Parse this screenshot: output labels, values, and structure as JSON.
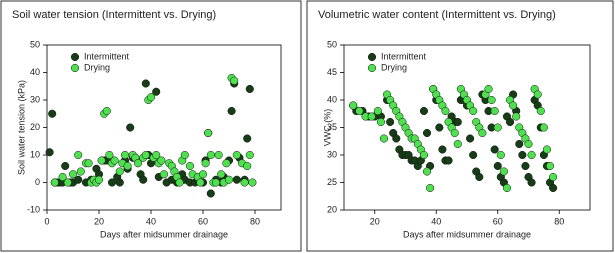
{
  "chart_data": [
    {
      "type": "scatter",
      "title": "Soil water tension (Intermittent vs. Drying)",
      "x_label": "Days after midsummer drainage",
      "y_label": "Soil water tension (kPa)",
      "xlim": [
        0,
        90
      ],
      "xticks": [
        0,
        20,
        40,
        60,
        80
      ],
      "ylim": [
        -10,
        50
      ],
      "yticks": [
        -10,
        0,
        10,
        20,
        30,
        40,
        50
      ],
      "legend": "upper left",
      "grid": false,
      "series": [
        {
          "name": "Intermittent",
          "color": "#173d17",
          "x": [
            1,
            2,
            3,
            4,
            5,
            6,
            7,
            9,
            10,
            12,
            15,
            17,
            19,
            20,
            22,
            23,
            25,
            27,
            28,
            30,
            31,
            32,
            33,
            34,
            36,
            37,
            38,
            39,
            40,
            42,
            43,
            46,
            48,
            50,
            52,
            53,
            55,
            57,
            58,
            60,
            61,
            62,
            63,
            65,
            67,
            68,
            70,
            71,
            72,
            73,
            74,
            76,
            77,
            78
          ],
          "values": [
            11,
            25,
            0,
            0,
            0,
            0,
            6,
            0,
            0,
            1,
            0,
            1,
            5,
            3,
            8,
            8,
            0,
            2,
            0,
            8,
            5,
            20,
            9,
            9,
            3,
            1,
            36,
            10,
            7,
            33,
            2,
            0,
            1,
            0,
            3,
            1,
            0,
            0,
            1,
            0,
            8,
            18,
            -4,
            1,
            0,
            2,
            8,
            26,
            36,
            1,
            9,
            1,
            16,
            34
          ]
        },
        {
          "name": "Drying",
          "color": "#4fe04f",
          "x": [
            3,
            6,
            8,
            10,
            12,
            13,
            15,
            16,
            17,
            18,
            19,
            20,
            21,
            22,
            23,
            24,
            25,
            26,
            28,
            29,
            30,
            31,
            33,
            34,
            35,
            37,
            38,
            39,
            40,
            41,
            42,
            43,
            44,
            45,
            47,
            48,
            49,
            50,
            51,
            52,
            53,
            55,
            56,
            58,
            59,
            60,
            61,
            62,
            63,
            64,
            65,
            66,
            67,
            68,
            69,
            70,
            71,
            72,
            73,
            75,
            76,
            77,
            78,
            79
          ],
          "values": [
            0,
            2,
            0,
            3,
            10,
            4,
            7,
            7,
            0,
            1,
            0,
            1,
            8,
            25,
            26,
            10,
            7,
            8,
            4,
            7,
            10,
            6,
            10,
            9,
            7,
            9,
            10,
            30,
            31,
            9,
            10,
            7,
            8,
            3,
            7,
            6,
            4,
            2,
            0,
            8,
            10,
            6,
            3,
            2,
            0,
            3,
            7,
            18,
            10,
            0,
            0,
            10,
            3,
            0,
            7,
            1,
            38,
            37,
            10,
            7,
            0,
            6,
            10,
            0
          ]
        }
      ]
    },
    {
      "type": "scatter",
      "title": "Volumetric water content (Intermittent vs. Drying)",
      "x_label": "Days after midsummer drainage",
      "y_label": "VWC (%)",
      "xlim": [
        10,
        90
      ],
      "xticks": [
        20,
        40,
        60,
        80
      ],
      "ylim": [
        20,
        50
      ],
      "yticks": [
        20,
        25,
        30,
        35,
        40,
        45,
        50
      ],
      "legend": "upper left",
      "grid": false,
      "series": [
        {
          "name": "Intermittent",
          "color": "#173d17",
          "x": [
            13,
            14,
            16,
            18,
            20,
            22,
            24,
            25,
            26,
            27,
            28,
            29,
            30,
            31,
            32,
            33,
            34,
            35,
            36,
            37,
            38,
            39,
            40,
            41,
            42,
            43,
            44,
            45,
            46,
            47,
            48,
            49,
            50,
            51,
            52,
            53,
            54,
            55,
            56,
            57,
            58,
            59,
            60,
            61,
            62,
            63,
            64,
            65,
            66,
            67,
            68,
            69,
            70,
            71,
            72,
            73,
            74,
            75,
            76,
            77,
            78
          ],
          "values": [
            39,
            38,
            38,
            37,
            37,
            37,
            40,
            36,
            34,
            33,
            31,
            30,
            30,
            30,
            29,
            29,
            28,
            29,
            38,
            34,
            28,
            42,
            40,
            35,
            31,
            29,
            29,
            37,
            36,
            36,
            40,
            40,
            39,
            33,
            30,
            27,
            26,
            41,
            40,
            38,
            35,
            31,
            28,
            26,
            25,
            37,
            36,
            41,
            38,
            32,
            30,
            28,
            26,
            25,
            40,
            39,
            35,
            30,
            28,
            25,
            24
          ]
        },
        {
          "name": "Drying",
          "color": "#4fe04f",
          "x": [
            13,
            15,
            17,
            19,
            21,
            22,
            23,
            24,
            25,
            26,
            27,
            28,
            29,
            30,
            31,
            32,
            33,
            34,
            35,
            36,
            37,
            38,
            39,
            40,
            41,
            42,
            43,
            44,
            45,
            46,
            47,
            48,
            49,
            50,
            51,
            52,
            53,
            54,
            55,
            56,
            57,
            58,
            59,
            60,
            61,
            62,
            63,
            64,
            65,
            66,
            67,
            68,
            69,
            70,
            71,
            72,
            73,
            74,
            75,
            76,
            77,
            78
          ],
          "values": [
            39,
            38,
            37,
            37,
            38,
            36,
            33,
            41,
            40,
            39,
            38,
            37,
            36,
            35,
            34,
            33,
            33,
            32,
            31,
            30,
            27,
            24,
            42,
            41,
            40,
            39,
            38,
            36,
            35,
            34,
            32,
            42,
            41,
            40,
            39,
            38,
            36,
            35,
            34,
            41,
            42,
            40,
            38,
            35,
            30,
            27,
            24,
            40,
            39,
            37,
            35,
            34,
            33,
            32,
            30,
            42,
            41,
            38,
            35,
            31,
            28,
            26
          ]
        }
      ]
    }
  ]
}
